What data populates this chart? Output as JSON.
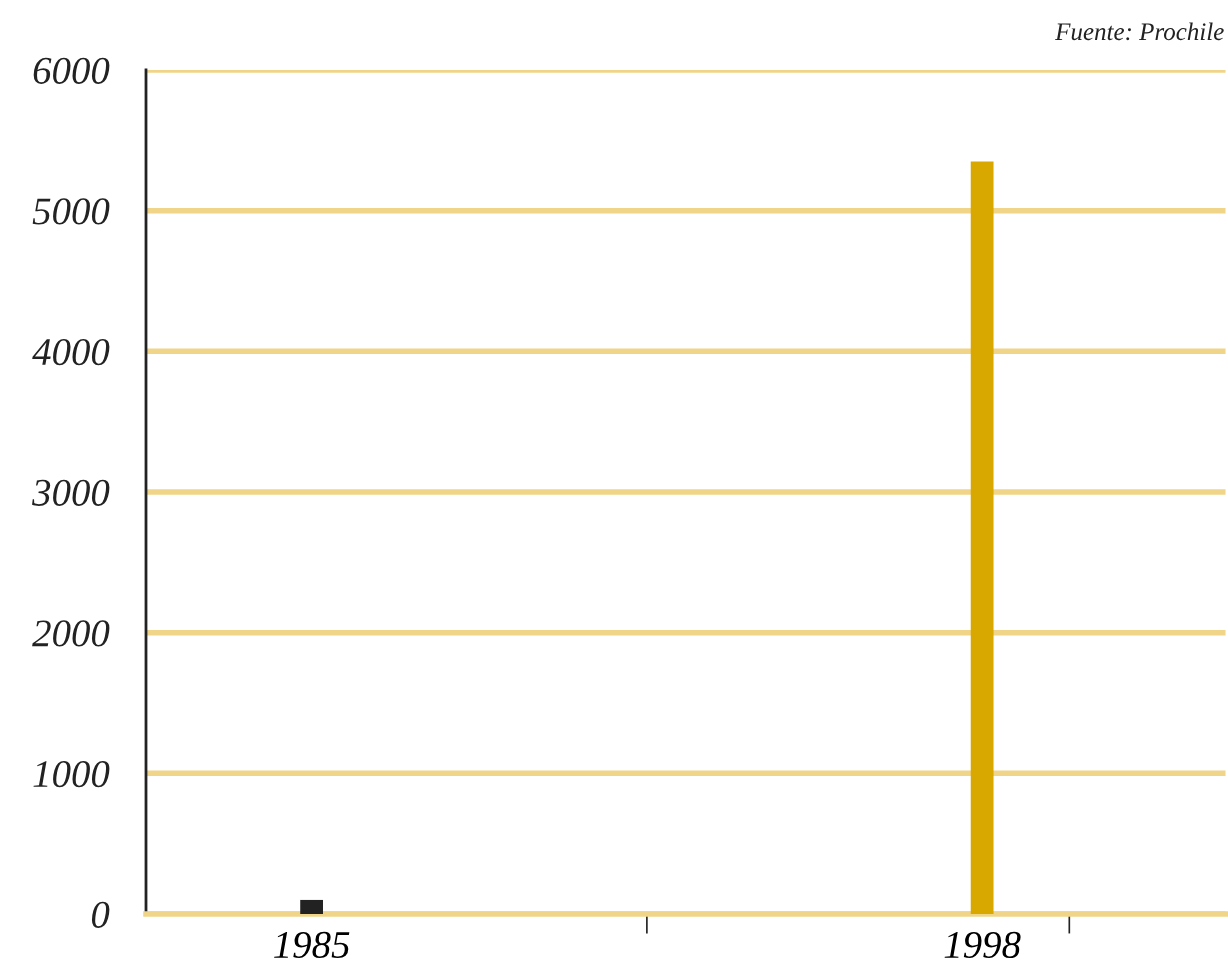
{
  "chart_data": {
    "type": "bar",
    "categories": [
      "1985",
      "1998"
    ],
    "values": [
      100,
      5350
    ],
    "colors": [
      "#222222",
      "#d9a800"
    ],
    "ylim": [
      0,
      6000
    ],
    "yticks": [
      0,
      1000,
      2000,
      3000,
      4000,
      5000,
      6000
    ],
    "grid": "y",
    "annotations": [
      "Fuente: Prochile"
    ]
  }
}
